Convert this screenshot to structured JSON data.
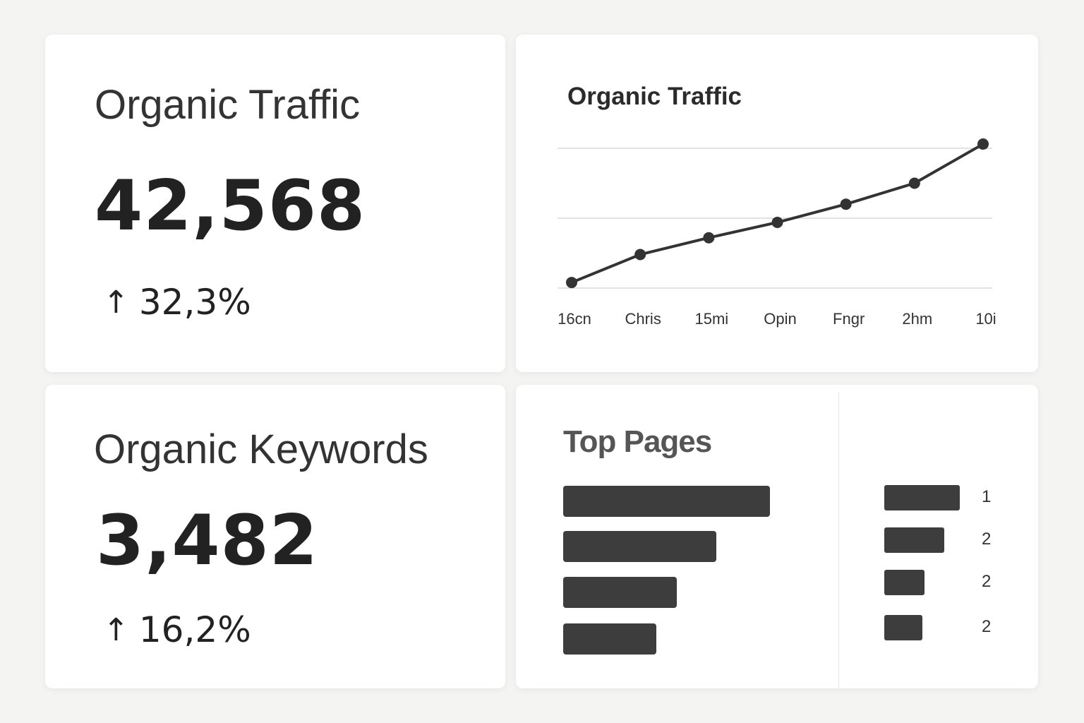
{
  "traffic_card": {
    "title": "Organic Traffic",
    "value": "42,568",
    "change": "32,3%",
    "change_icon": "arrow-up-icon"
  },
  "keywords_card": {
    "title": "Organic Keywords",
    "value": "3,482",
    "change": "16,2%",
    "change_icon": "arrow-up-icon"
  },
  "chart_data": {
    "type": "line",
    "title": "Organic Traffic",
    "categories": [
      "16cn",
      "Chris",
      "15mi",
      "Opin",
      "Fngr",
      "2hm",
      "10i"
    ],
    "values": [
      4,
      24,
      36,
      47,
      60,
      75,
      103
    ],
    "ylim": [
      0,
      100
    ],
    "grid": true,
    "line_color": "#333333"
  },
  "top_pages": {
    "title": "Top Pages",
    "left_bars": [
      100,
      74,
      55,
      45
    ],
    "right_bars": [
      100,
      79,
      53,
      50
    ],
    "ranks": [
      "1",
      "2",
      "2",
      "2"
    ],
    "bar_color": "#3d3d3d"
  }
}
